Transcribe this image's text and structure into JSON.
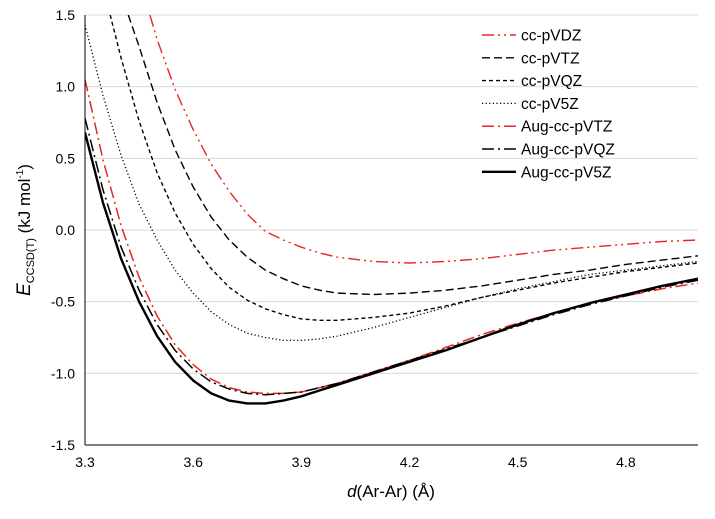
{
  "chart_data": {
    "type": "line",
    "title": "",
    "xlabel": {
      "italic": "d",
      "rest": "(Ar-Ar) (Å)"
    },
    "ylabel": {
      "italic": "E",
      "sub": "CCSD(T)",
      "unit_a": " (kJ mol",
      "unit_sup": "-1",
      "unit_b": ")"
    },
    "xlim": [
      3.3,
      5.0
    ],
    "ylim": [
      -1.5,
      1.5
    ],
    "xticks": [
      "3.3",
      "3.6",
      "3.9",
      "4.2",
      "4.5",
      "4.8"
    ],
    "yticks": [
      "1.5",
      "1.0",
      "0.5",
      "0.0",
      "-0.5",
      "-1.0",
      "-1.5"
    ],
    "legend_position": "top-right",
    "series": [
      {
        "name": "cc-pVDZ",
        "color": "#e8261f",
        "dash": "dashdotdot",
        "width": 1.4,
        "x": [
          3.48,
          3.5,
          3.55,
          3.6,
          3.65,
          3.7,
          3.75,
          3.8,
          3.85,
          3.9,
          3.95,
          4.0,
          4.1,
          4.2,
          4.3,
          4.4,
          4.5,
          4.6,
          4.7,
          4.8,
          4.9,
          5.0
        ],
        "y": [
          1.5,
          1.33,
          0.98,
          0.7,
          0.46,
          0.27,
          0.11,
          -0.01,
          -0.07,
          -0.12,
          -0.16,
          -0.19,
          -0.22,
          -0.23,
          -0.22,
          -0.2,
          -0.17,
          -0.14,
          -0.12,
          -0.1,
          -0.08,
          -0.07
        ]
      },
      {
        "name": "cc-pVTZ",
        "color": "#000000",
        "dash": "longdash",
        "width": 1.4,
        "x": [
          3.42,
          3.45,
          3.5,
          3.55,
          3.6,
          3.65,
          3.7,
          3.75,
          3.8,
          3.85,
          3.9,
          3.95,
          4.0,
          4.1,
          4.2,
          4.3,
          4.4,
          4.5,
          4.6,
          4.7,
          4.8,
          4.9,
          5.0
        ],
        "y": [
          1.5,
          1.28,
          0.89,
          0.56,
          0.3,
          0.09,
          -0.07,
          -0.19,
          -0.28,
          -0.34,
          -0.39,
          -0.42,
          -0.44,
          -0.45,
          -0.44,
          -0.42,
          -0.39,
          -0.35,
          -0.31,
          -0.28,
          -0.24,
          -0.21,
          -0.18
        ]
      },
      {
        "name": "cc-pVQZ",
        "color": "#000000",
        "dash": "shortdash",
        "width": 1.4,
        "x": [
          3.37,
          3.4,
          3.45,
          3.5,
          3.55,
          3.6,
          3.65,
          3.7,
          3.75,
          3.8,
          3.85,
          3.9,
          3.95,
          4.0,
          4.1,
          4.2,
          4.3,
          4.4,
          4.5,
          4.6,
          4.7,
          4.8,
          4.9,
          5.0
        ],
        "y": [
          1.5,
          1.2,
          0.76,
          0.4,
          0.12,
          -0.1,
          -0.27,
          -0.4,
          -0.49,
          -0.55,
          -0.59,
          -0.62,
          -0.63,
          -0.63,
          -0.61,
          -0.58,
          -0.53,
          -0.47,
          -0.42,
          -0.37,
          -0.33,
          -0.29,
          -0.26,
          -0.23
        ]
      },
      {
        "name": "cc-pV5Z",
        "color": "#000000",
        "dash": "dot",
        "width": 1.3,
        "x": [
          3.3,
          3.35,
          3.4,
          3.45,
          3.5,
          3.55,
          3.6,
          3.65,
          3.7,
          3.75,
          3.8,
          3.85,
          3.9,
          3.95,
          4.0,
          4.1,
          4.2,
          4.3,
          4.4,
          4.5,
          4.6,
          4.7,
          4.8,
          4.9,
          5.0
        ],
        "y": [
          1.43,
          0.94,
          0.52,
          0.18,
          -0.07,
          -0.28,
          -0.44,
          -0.57,
          -0.66,
          -0.72,
          -0.75,
          -0.77,
          -0.77,
          -0.76,
          -0.74,
          -0.68,
          -0.61,
          -0.54,
          -0.47,
          -0.41,
          -0.36,
          -0.31,
          -0.28,
          -0.25,
          -0.22
        ]
      },
      {
        "name": "Aug-cc-pVTZ",
        "color": "#e8261f",
        "dash": "dashdot",
        "width": 1.5,
        "x": [
          3.3,
          3.35,
          3.4,
          3.45,
          3.5,
          3.55,
          3.6,
          3.65,
          3.7,
          3.75,
          3.8,
          3.85,
          3.9,
          3.95,
          4.0,
          4.1,
          4.2,
          4.3,
          4.4,
          4.5,
          4.6,
          4.7,
          4.8,
          4.9,
          5.0
        ],
        "y": [
          1.05,
          0.49,
          0.03,
          -0.33,
          -0.6,
          -0.8,
          -0.94,
          -1.04,
          -1.1,
          -1.13,
          -1.14,
          -1.14,
          -1.13,
          -1.1,
          -1.07,
          -0.99,
          -0.91,
          -0.82,
          -0.73,
          -0.65,
          -0.58,
          -0.51,
          -0.46,
          -0.41,
          -0.37
        ]
      },
      {
        "name": "Aug-cc-pVQZ",
        "color": "#000000",
        "dash": "dashdot",
        "width": 1.5,
        "x": [
          3.3,
          3.35,
          3.4,
          3.45,
          3.5,
          3.55,
          3.6,
          3.65,
          3.7,
          3.75,
          3.8,
          3.85,
          3.9,
          3.95,
          4.0,
          4.1,
          4.2,
          4.3,
          4.4,
          4.5,
          4.6,
          4.7,
          4.8,
          4.9,
          5.0
        ],
        "y": [
          0.78,
          0.28,
          -0.12,
          -0.42,
          -0.66,
          -0.84,
          -0.97,
          -1.06,
          -1.11,
          -1.14,
          -1.15,
          -1.14,
          -1.13,
          -1.1,
          -1.07,
          -0.99,
          -0.91,
          -0.83,
          -0.75,
          -0.67,
          -0.59,
          -0.52,
          -0.46,
          -0.4,
          -0.35
        ]
      },
      {
        "name": "Aug-cc-pV5Z",
        "color": "#000000",
        "dash": "solid",
        "width": 2.4,
        "x": [
          3.3,
          3.35,
          3.4,
          3.45,
          3.5,
          3.55,
          3.6,
          3.65,
          3.7,
          3.75,
          3.8,
          3.85,
          3.9,
          3.95,
          4.0,
          4.1,
          4.2,
          4.3,
          4.4,
          4.5,
          4.6,
          4.7,
          4.8,
          4.9,
          5.0
        ],
        "y": [
          0.68,
          0.19,
          -0.2,
          -0.5,
          -0.74,
          -0.92,
          -1.05,
          -1.14,
          -1.19,
          -1.21,
          -1.21,
          -1.19,
          -1.16,
          -1.12,
          -1.08,
          -1.0,
          -0.92,
          -0.84,
          -0.75,
          -0.66,
          -0.58,
          -0.51,
          -0.45,
          -0.39,
          -0.34
        ]
      }
    ]
  }
}
